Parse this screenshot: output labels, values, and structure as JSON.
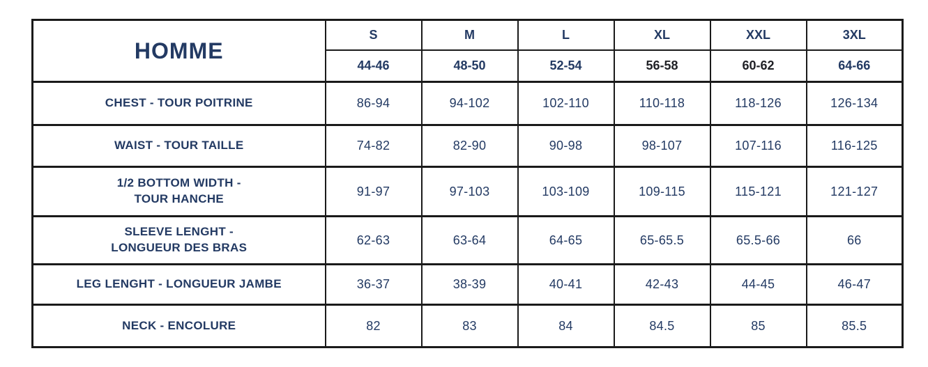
{
  "colors": {
    "text_navy": "#233a63",
    "text_dark": "#202126",
    "border": "#1a1a1a",
    "background": "#ffffff"
  },
  "chart_data": {
    "type": "table",
    "title": "HOMME",
    "columns": [
      "S",
      "M",
      "L",
      "XL",
      "XXL",
      "3XL"
    ],
    "size_ranges": [
      "44-46",
      "48-50",
      "52-54",
      "56-58",
      "60-62",
      "64-66"
    ],
    "size_range_hex": [
      "#233a63",
      "#233a63",
      "#233a63",
      "#202126",
      "#202126",
      "#233a63"
    ],
    "rows": [
      {
        "label": "CHEST - TOUR POITRINE",
        "values": [
          "86-94",
          "94-102",
          "102-110",
          "110-118",
          "118-126",
          "126-134"
        ]
      },
      {
        "label": "WAIST - TOUR TAILLE",
        "values": [
          "74-82",
          "82-90",
          "90-98",
          "98-107",
          "107-116",
          "116-125"
        ]
      },
      {
        "label": "1/2 BOTTOM WIDTH -\nTOUR HANCHE",
        "values": [
          "91-97",
          "97-103",
          "103-109",
          "109-115",
          "115-121",
          "121-127"
        ]
      },
      {
        "label": "SLEEVE LENGHT -\nLONGUEUR DES BRAS",
        "values": [
          "62-63",
          "63-64",
          "64-65",
          "65-65.5",
          "65.5-66",
          "66"
        ]
      },
      {
        "label": "LEG LENGHT - LONGUEUR JAMBE",
        "values": [
          "36-37",
          "38-39",
          "40-41",
          "42-43",
          "44-45",
          "46-47"
        ]
      },
      {
        "label": "NECK - ENCOLURE",
        "values": [
          "82",
          "83",
          "84",
          "84.5",
          "85",
          "85.5"
        ]
      }
    ]
  }
}
